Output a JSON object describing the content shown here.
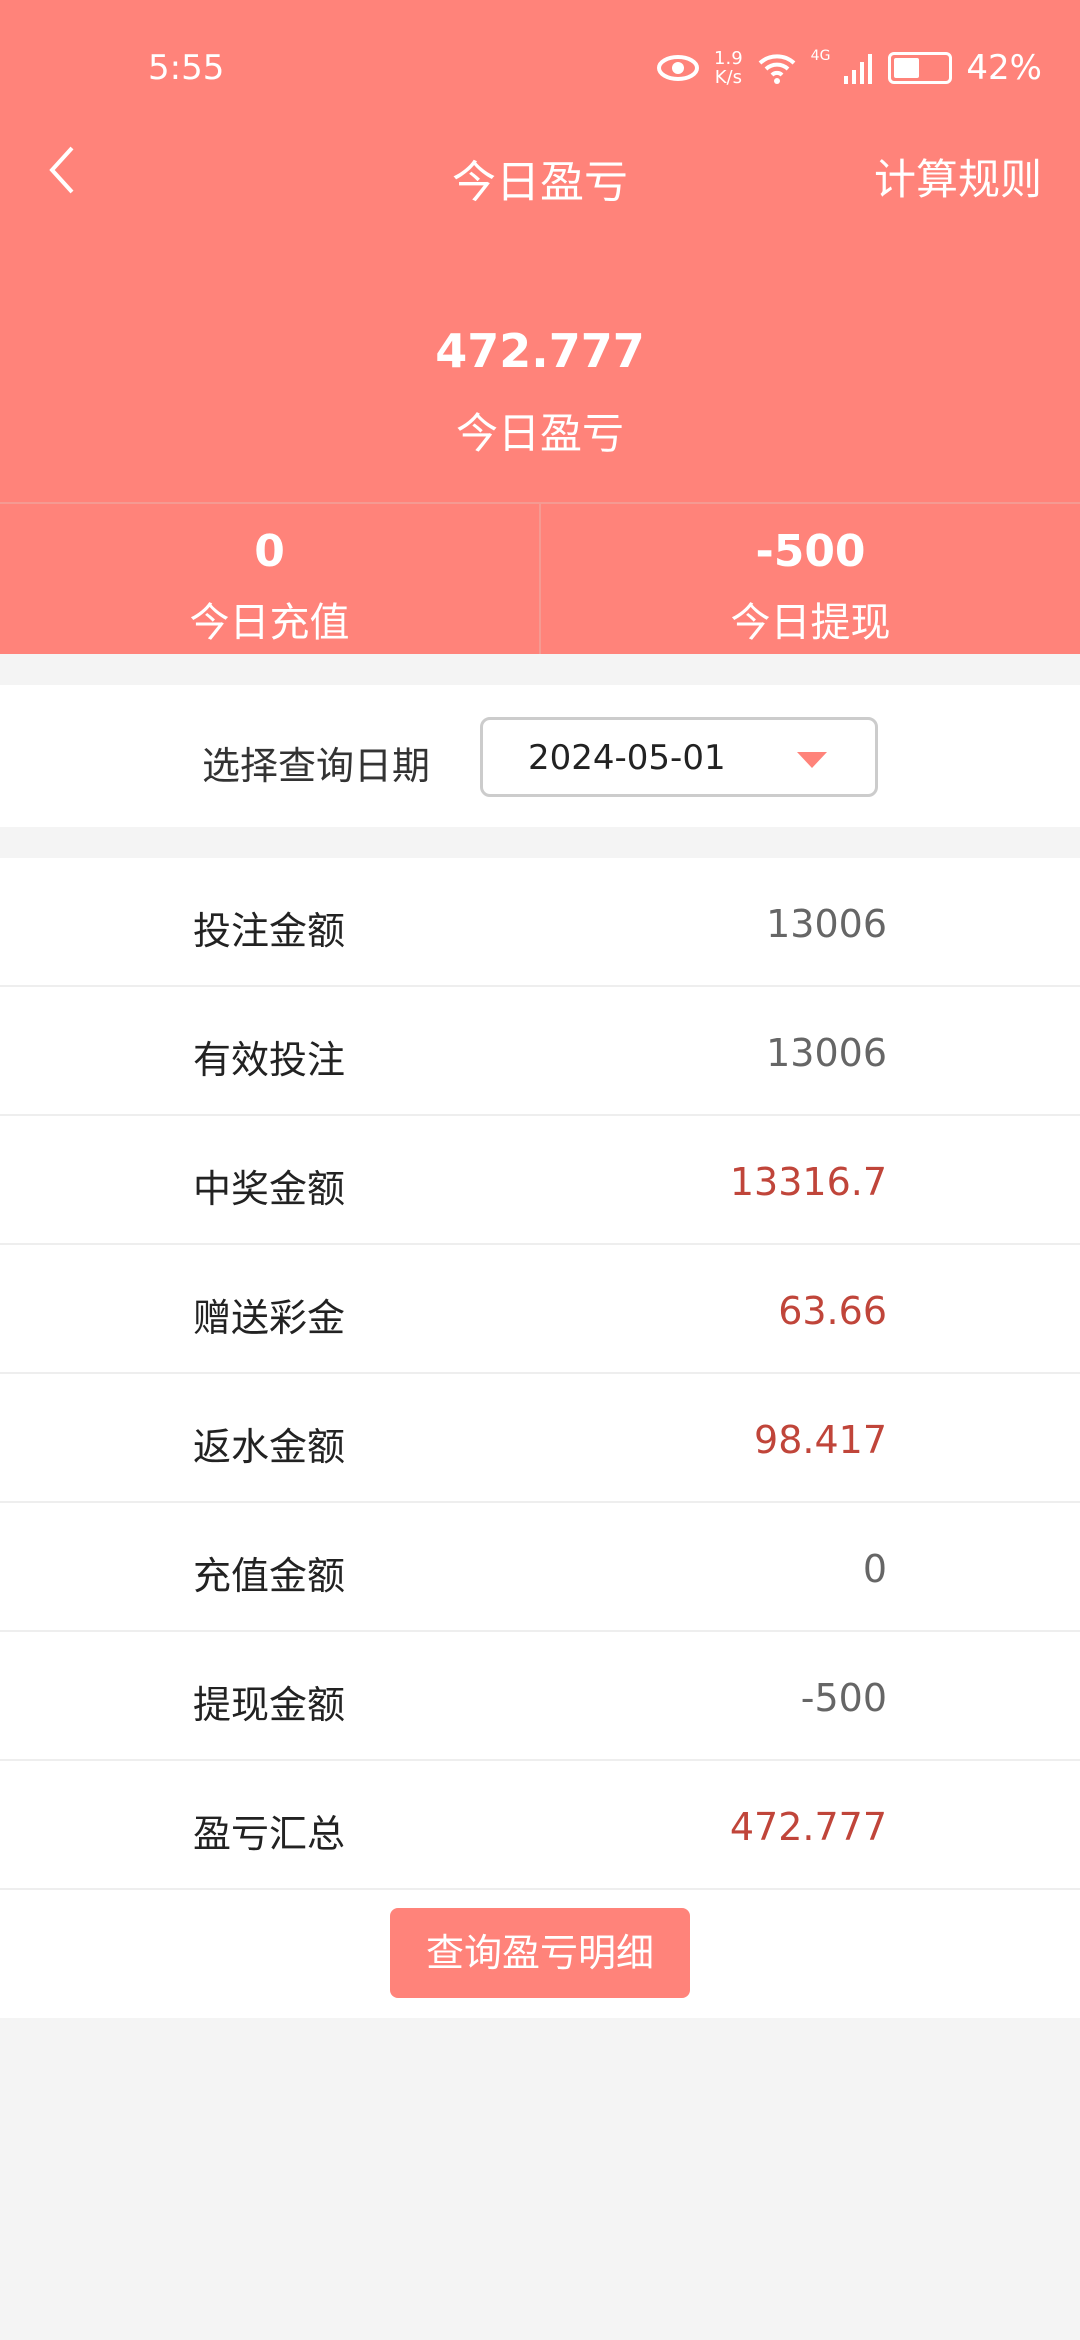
{
  "status": {
    "time": "5:55",
    "speed_top": "1.9",
    "speed_bottom": "K/s",
    "network": "4G",
    "battery": "42%",
    "battery_level": 0.42
  },
  "nav": {
    "title": "今日盈亏",
    "rules": "计算规则"
  },
  "summary": {
    "value": "472.777",
    "label": "今日盈亏"
  },
  "stats": [
    {
      "value": "0",
      "label": "今日充值"
    },
    {
      "value": "-500",
      "label": "今日提现"
    }
  ],
  "date": {
    "label": "选择查询日期",
    "value": "2024-05-01"
  },
  "rows": [
    {
      "label": "投注金额",
      "value": "13006",
      "highlight": false
    },
    {
      "label": "有效投注",
      "value": "13006",
      "highlight": false
    },
    {
      "label": "中奖金额",
      "value": "13316.7",
      "highlight": true
    },
    {
      "label": "赠送彩金",
      "value": "63.66",
      "highlight": true
    },
    {
      "label": "返水金额",
      "value": "98.417",
      "highlight": true
    },
    {
      "label": "充值金额",
      "value": "0",
      "highlight": false
    },
    {
      "label": "提现金额",
      "value": "-500",
      "highlight": false
    },
    {
      "label": "盈亏汇总",
      "value": "472.777",
      "highlight": true
    }
  ],
  "button": {
    "label": "查询盈亏明细"
  },
  "colors": {
    "accent": "#ff837a",
    "highlight": "#c0453a"
  }
}
